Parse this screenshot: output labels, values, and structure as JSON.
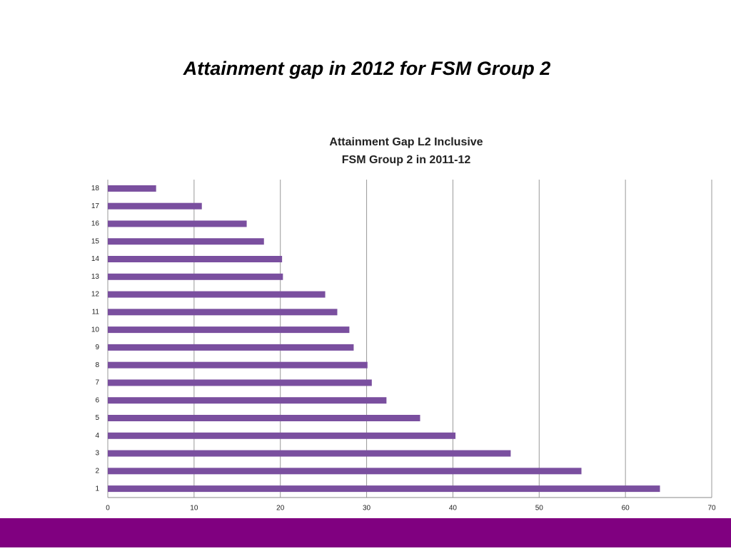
{
  "header": {
    "title": "Attainment gap in 2012 for FSM Group 2"
  },
  "chart_data": {
    "type": "bar",
    "orientation": "horizontal",
    "title": [
      "Attainment Gap L2 Inclusive",
      "FSM Group 2 in 2011-12"
    ],
    "categories": [
      "1",
      "2",
      "3",
      "4",
      "5",
      "6",
      "7",
      "8",
      "9",
      "10",
      "11",
      "12",
      "13",
      "14",
      "15",
      "16",
      "17",
      "18"
    ],
    "values": [
      64.0,
      54.9,
      46.7,
      40.3,
      36.2,
      32.3,
      30.6,
      30.1,
      28.5,
      28.0,
      26.6,
      25.2,
      20.3,
      20.2,
      18.1,
      16.1,
      10.9,
      5.6
    ],
    "color": "#7a4f9f",
    "xlim": [
      0,
      70
    ],
    "xticks": [
      0,
      10,
      20,
      30,
      40,
      50,
      60,
      70
    ],
    "grid": true
  }
}
